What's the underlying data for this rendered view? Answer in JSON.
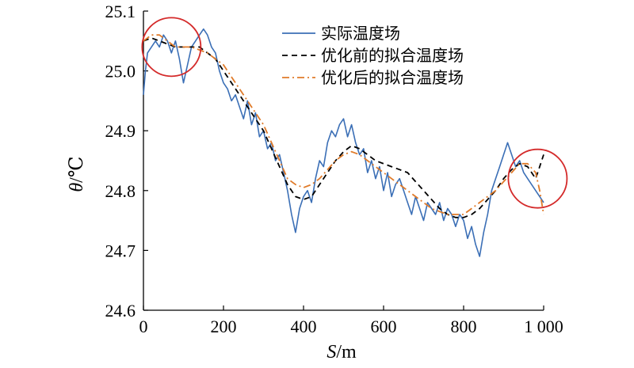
{
  "chart_data": {
    "type": "line",
    "title": "",
    "xlabel_var": "S",
    "xlabel_unit": "/m",
    "ylabel_var": "θ",
    "ylabel_unit": "/℃",
    "xlim": [
      0,
      1000
    ],
    "ylim": [
      24.6,
      25.1
    ],
    "x_ticks": [
      0,
      200,
      400,
      600,
      800,
      1000
    ],
    "x_tick_labels": [
      "0",
      "200",
      "400",
      "600",
      "800",
      "1 000"
    ],
    "y_ticks": [
      24.6,
      24.7,
      24.8,
      24.9,
      25.0,
      25.1
    ],
    "y_tick_labels": [
      "24.6",
      "24.7",
      "24.8",
      "24.9",
      "25.0",
      "25.1"
    ],
    "grid": false,
    "legend_position": "top-right",
    "series": [
      {
        "name": "实际温度场",
        "color": "#3b6fb6",
        "style": "solid",
        "x": [
          0,
          5,
          10,
          20,
          30,
          40,
          50,
          60,
          70,
          80,
          90,
          100,
          110,
          120,
          130,
          140,
          150,
          160,
          170,
          180,
          190,
          200,
          210,
          220,
          230,
          240,
          250,
          260,
          270,
          280,
          290,
          300,
          310,
          320,
          330,
          340,
          350,
          360,
          370,
          380,
          390,
          400,
          410,
          420,
          430,
          440,
          450,
          460,
          470,
          480,
          490,
          500,
          510,
          520,
          530,
          540,
          550,
          560,
          570,
          580,
          590,
          600,
          610,
          620,
          630,
          640,
          650,
          660,
          670,
          680,
          690,
          700,
          710,
          720,
          730,
          740,
          750,
          760,
          770,
          780,
          790,
          800,
          810,
          820,
          830,
          840,
          850,
          860,
          870,
          880,
          890,
          900,
          910,
          920,
          930,
          940,
          950,
          960,
          970,
          980,
          990,
          1000
        ],
        "values": [
          24.96,
          25.0,
          25.03,
          25.04,
          25.05,
          25.04,
          25.06,
          25.05,
          25.03,
          25.05,
          25.02,
          24.98,
          25.01,
          25.04,
          25.05,
          25.06,
          25.07,
          25.06,
          25.04,
          25.03,
          25.0,
          24.98,
          24.97,
          24.95,
          24.96,
          24.94,
          24.92,
          24.95,
          24.91,
          24.93,
          24.89,
          24.9,
          24.87,
          24.88,
          24.85,
          24.86,
          24.83,
          24.8,
          24.76,
          24.73,
          24.77,
          24.79,
          24.8,
          24.78,
          24.82,
          24.85,
          24.84,
          24.88,
          24.9,
          24.89,
          24.91,
          24.92,
          24.89,
          24.91,
          24.88,
          24.86,
          24.87,
          24.83,
          24.85,
          24.82,
          24.84,
          24.8,
          24.83,
          24.79,
          24.81,
          24.82,
          24.8,
          24.78,
          24.76,
          24.79,
          24.77,
          24.75,
          24.78,
          24.77,
          24.76,
          24.78,
          24.75,
          24.77,
          24.76,
          24.74,
          24.76,
          24.75,
          24.72,
          24.74,
          24.71,
          24.69,
          24.73,
          24.76,
          24.8,
          24.82,
          24.84,
          24.86,
          24.88,
          24.86,
          24.84,
          24.85,
          24.83,
          24.82,
          24.81,
          24.8,
          24.79,
          24.78
        ]
      },
      {
        "name": "优化前的拟合温度场",
        "color": "#000000",
        "style": "dashed",
        "x": [
          0,
          20,
          40,
          60,
          80,
          100,
          120,
          140,
          160,
          180,
          200,
          220,
          240,
          260,
          280,
          300,
          320,
          340,
          360,
          380,
          400,
          420,
          440,
          460,
          480,
          500,
          520,
          540,
          560,
          580,
          600,
          620,
          640,
          660,
          680,
          700,
          720,
          740,
          760,
          780,
          800,
          820,
          840,
          860,
          880,
          900,
          920,
          940,
          960,
          980,
          990,
          1000
        ],
        "values": [
          25.05,
          25.055,
          25.05,
          25.045,
          25.04,
          25.04,
          25.04,
          25.04,
          25.03,
          25.02,
          25.0,
          24.98,
          24.96,
          24.94,
          24.92,
          24.9,
          24.87,
          24.84,
          24.81,
          24.79,
          24.785,
          24.79,
          24.81,
          24.83,
          24.85,
          24.865,
          24.875,
          24.87,
          24.86,
          24.85,
          24.845,
          24.84,
          24.835,
          24.83,
          24.815,
          24.8,
          24.785,
          24.77,
          24.76,
          24.755,
          24.755,
          24.76,
          24.77,
          24.785,
          24.8,
          24.82,
          24.835,
          24.845,
          24.84,
          24.82,
          24.84,
          24.86
        ]
      },
      {
        "name": "优化后的拟合温度场",
        "color": "#e07b2a",
        "style": "dashdot",
        "x": [
          0,
          20,
          40,
          60,
          80,
          100,
          120,
          140,
          160,
          180,
          200,
          220,
          240,
          260,
          280,
          300,
          320,
          340,
          360,
          380,
          400,
          420,
          440,
          460,
          480,
          500,
          520,
          540,
          560,
          580,
          600,
          620,
          640,
          660,
          680,
          700,
          720,
          740,
          760,
          780,
          800,
          820,
          840,
          860,
          880,
          900,
          920,
          940,
          960,
          980,
          990,
          1000
        ],
        "values": [
          25.05,
          25.06,
          25.06,
          25.05,
          25.04,
          25.04,
          25.04,
          25.035,
          25.03,
          25.02,
          25.01,
          24.99,
          24.97,
          24.95,
          24.93,
          24.91,
          24.88,
          24.85,
          24.82,
          24.81,
          24.805,
          24.81,
          24.82,
          24.835,
          24.85,
          24.86,
          24.865,
          24.86,
          24.85,
          24.84,
          24.83,
          24.82,
          24.81,
          24.8,
          24.79,
          24.78,
          24.77,
          24.765,
          24.76,
          24.76,
          24.76,
          24.77,
          24.78,
          24.79,
          24.8,
          24.815,
          24.83,
          24.845,
          24.845,
          24.83,
          24.8,
          24.76
        ]
      }
    ],
    "highlight_circles": [
      {
        "x": 70,
        "y": 25.04,
        "color": "#d42a2a"
      },
      {
        "x": 985,
        "y": 24.82,
        "color": "#d42a2a"
      }
    ]
  }
}
